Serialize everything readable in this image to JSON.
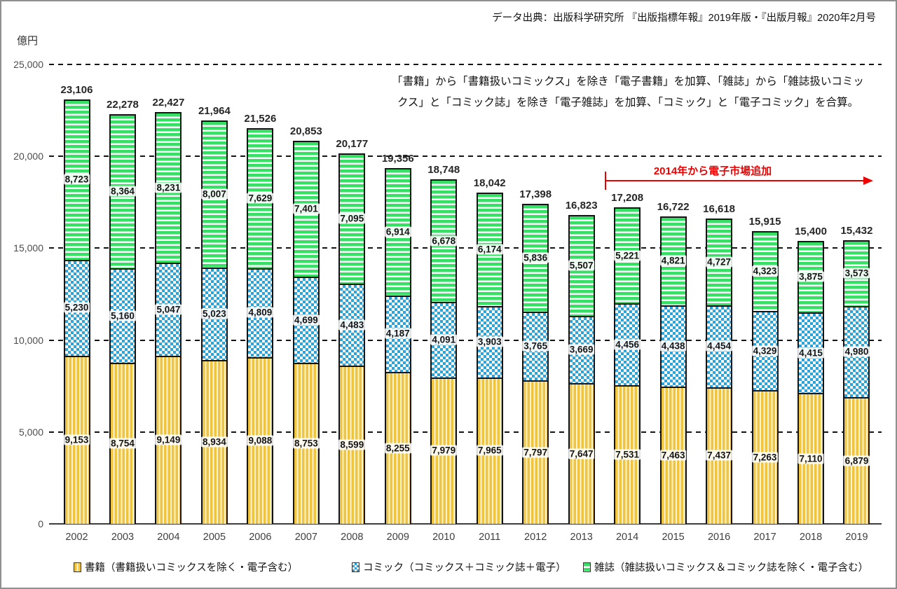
{
  "source_note": "データ出典：出版科学研究所 『出版指標年報』2019年版・『出版月報』2020年2月号",
  "unit_label": "億円",
  "note_lines": [
    "「書籍」から「書籍扱いコミックス」を除き「電子書籍」を加算、「雑誌」から「雑誌扱いコミッ",
    "クス」と「コミック誌」を除き「電子雑誌」を加算、「コミック」と「電子コミック」を合算。"
  ],
  "electronic_note": "2014年から電子市場追加",
  "colors": {
    "books": "#efc43f",
    "books_light": "#fdf3d2",
    "comics": "#2aa4da",
    "magazines": "#35e065",
    "annotation_red": "#ee0000",
    "grid": "#141414"
  },
  "chart_data": {
    "type": "bar",
    "stacked": true,
    "title": "",
    "xlabel": "",
    "ylabel": "億円",
    "ylim": [
      0,
      25000
    ],
    "yticks": [
      0,
      5000,
      10000,
      15000,
      20000,
      25000
    ],
    "grid": "dashed-horizontal",
    "legend_position": "bottom",
    "categories": [
      "2002",
      "2003",
      "2004",
      "2005",
      "2006",
      "2007",
      "2008",
      "2009",
      "2010",
      "2011",
      "2012",
      "2013",
      "2014",
      "2015",
      "2016",
      "2017",
      "2018",
      "2019"
    ],
    "series": [
      {
        "name": "書籍（書籍扱いコミックスを除く・電子含む）",
        "pattern": "vertical-stripes",
        "color": "#efc43f",
        "color_light": "#fdf3d2",
        "values": [
          9153,
          8754,
          9149,
          8934,
          9088,
          8753,
          8599,
          8255,
          7979,
          7965,
          7797,
          7647,
          7531,
          7463,
          7437,
          7263,
          7110,
          6879
        ]
      },
      {
        "name": "コミック（コミックス＋コミック誌＋電子）",
        "pattern": "checker",
        "color": "#2aa4da",
        "color_light": "#ffffff",
        "values": [
          5230,
          5160,
          5047,
          5023,
          4809,
          4699,
          4483,
          4187,
          4091,
          3903,
          3765,
          3669,
          4456,
          4438,
          4454,
          4329,
          4415,
          4980
        ]
      },
      {
        "name": "雑誌（雑誌扱いコミックス＆コミック誌を除く・電子含む）",
        "pattern": "horizontal-stripes",
        "color": "#35e065",
        "color_light": "#ffffff",
        "values": [
          8723,
          8364,
          8231,
          8007,
          7629,
          7401,
          7095,
          6914,
          6678,
          6174,
          5836,
          5507,
          5221,
          4821,
          4727,
          4323,
          3875,
          3573
        ]
      }
    ],
    "totals": [
      23106,
      22278,
      22427,
      21964,
      21526,
      20853,
      20177,
      19356,
      18748,
      18042,
      17398,
      16823,
      17208,
      16722,
      16618,
      15915,
      15400,
      15432
    ]
  }
}
